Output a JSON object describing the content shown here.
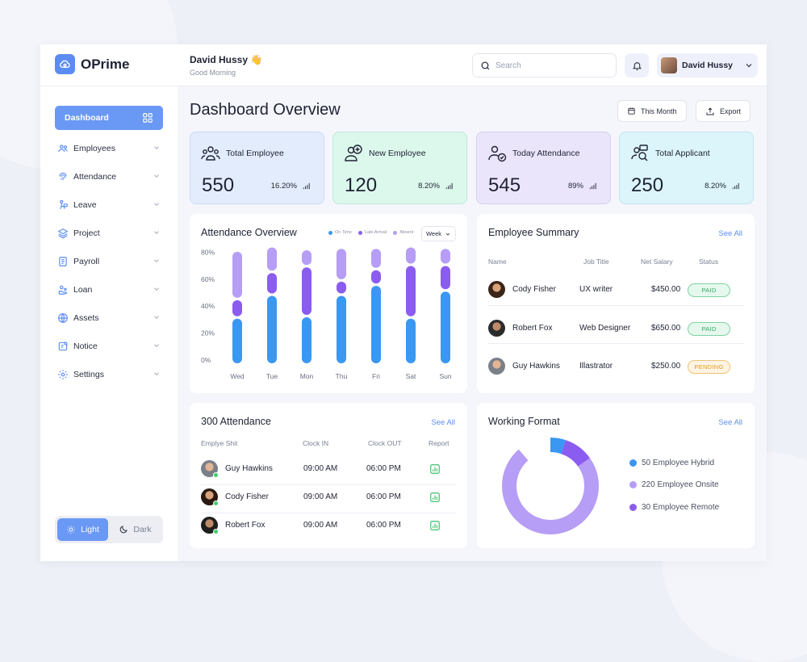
{
  "brand": {
    "name": "OPrime"
  },
  "header": {
    "user_name": "David Hussy",
    "wave": "👋",
    "greeting": "Good Morning",
    "search_placeholder": "Search",
    "profile_name": "David Hussy"
  },
  "sidebar": {
    "items": [
      {
        "label": "Dashboard",
        "icon": "grid-icon"
      },
      {
        "label": "Employees",
        "icon": "users-icon"
      },
      {
        "label": "Attendance",
        "icon": "fingerprint-icon"
      },
      {
        "label": "Leave",
        "icon": "leave-icon"
      },
      {
        "label": "Project",
        "icon": "layers-icon"
      },
      {
        "label": "Payroll",
        "icon": "document-icon"
      },
      {
        "label": "Loan",
        "icon": "coins-icon"
      },
      {
        "label": "Assets",
        "icon": "globe-icon"
      },
      {
        "label": "Notice",
        "icon": "notice-icon"
      },
      {
        "label": "Settings",
        "icon": "gear-icon"
      }
    ],
    "theme": {
      "light": "Light",
      "dark": "Dark"
    }
  },
  "page": {
    "title": "Dashboard Overview",
    "period_label": "This Month",
    "export_label": "Export"
  },
  "stats": [
    {
      "label": "Total Employee",
      "value": "550",
      "pct": "16.20%",
      "color": "#e3ecfd",
      "border": "#c9daf8"
    },
    {
      "label": "New Employee",
      "value": "120",
      "pct": "8.20%",
      "color": "#dcf7ec",
      "border": "#bfead8"
    },
    {
      "label": "Today Attendance",
      "value": "545",
      "pct": "89%",
      "color": "#ebe5fb",
      "border": "#d6cdf3"
    },
    {
      "label": "Total Applicant",
      "value": "250",
      "pct": "8.20%",
      "color": "#dcf5fb",
      "border": "#bfe6f0"
    }
  ],
  "attendance_overview": {
    "title": "Attendance Overview",
    "legend": [
      "On Time",
      "Late Arrival",
      "Absent"
    ],
    "filter": "Week",
    "colors": {
      "on_time": "#3a97f2",
      "late": "#8b5cf0",
      "absent": "#b69df5"
    }
  },
  "chart_data": {
    "type": "bar",
    "stacked": true,
    "categories": [
      "Wed",
      "Tue",
      "Mon",
      "Thu",
      "Fri",
      "Sat",
      "Sun"
    ],
    "yticks": [
      "0%",
      "20%",
      "40%",
      "60%",
      "80%"
    ],
    "ylim": [
      0,
      85
    ],
    "series": [
      {
        "name": "On Time",
        "values": [
          33,
          49,
          34,
          49,
          56,
          33,
          52
        ]
      },
      {
        "name": "Late Arrival",
        "values": [
          13,
          16,
          35,
          10,
          11,
          37,
          18
        ]
      },
      {
        "name": "Absent",
        "values": [
          34,
          18,
          12,
          23,
          15,
          13,
          12
        ]
      }
    ]
  },
  "employee_summary": {
    "title": "Employee Summary",
    "see_all": "See All",
    "headers": [
      "Name",
      "Job Title",
      "Net Salary",
      "Status"
    ],
    "rows": [
      {
        "name": "Cody Fisher",
        "job": "UX writer",
        "salary": "$450.00",
        "status": "PAID"
      },
      {
        "name": "Robert Fox",
        "job": "Web Designer",
        "salary": "$650.00",
        "status": "PAID"
      },
      {
        "name": "Guy Hawkins",
        "job": "Illastrator",
        "salary": "$250.00",
        "status": "PENDING"
      }
    ]
  },
  "attendance_list": {
    "title": "300 Attendance",
    "see_all": "See All",
    "headers": [
      "Emplye Shit",
      "Clock IN",
      "Clock OUT",
      "Report"
    ],
    "rows": [
      {
        "name": "Guy Hawkins",
        "in": "09:00 AM",
        "out": "06:00 PM"
      },
      {
        "name": "Cody Fisher",
        "in": "09:00 AM",
        "out": "06:00 PM"
      },
      {
        "name": "Robert Fox",
        "in": "09:00 AM",
        "out": "06:00 PM"
      }
    ]
  },
  "working_format": {
    "title": "Working Format",
    "see_all": "See All",
    "items": [
      {
        "label": "50 Employee Hybrid",
        "value": 50,
        "color": "#3a97f2"
      },
      {
        "label": "220 Employee Onsite",
        "value": 220,
        "color": "#b69df5"
      },
      {
        "label": "30 Employee Remote",
        "value": 30,
        "color": "#8b5cf0"
      }
    ]
  }
}
